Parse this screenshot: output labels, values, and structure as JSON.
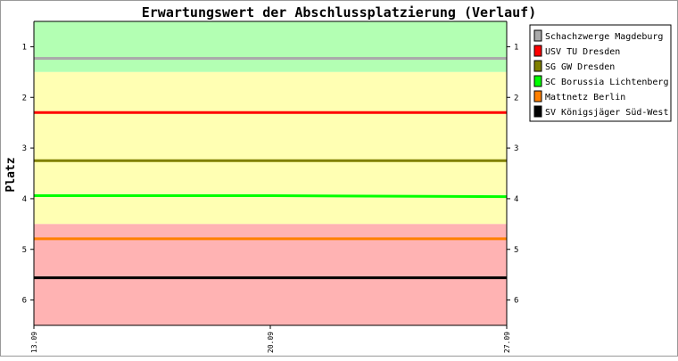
{
  "chart_data": {
    "type": "line",
    "title": "Erwartungswert der Abschlussplatzierung (Verlauf)",
    "xlabel": "",
    "ylabel": "Platz",
    "y_reversed": true,
    "ylim": [
      0.5,
      6.5
    ],
    "y_ticks": [
      "1",
      "2",
      "3",
      "4",
      "5",
      "6"
    ],
    "x": [
      "13.09",
      "20.09",
      "27.09"
    ],
    "bands": [
      {
        "from": 0.5,
        "to": 1.5,
        "color": "#b3ffb3"
      },
      {
        "from": 1.5,
        "to": 4.5,
        "color": "#ffffb3"
      },
      {
        "from": 4.5,
        "to": 6.5,
        "color": "#ffb3b3"
      }
    ],
    "series": [
      {
        "name": "Schachzwerge Magdeburg",
        "color": "#aaaaaa",
        "values": [
          1.23,
          1.23,
          1.23
        ]
      },
      {
        "name": "USV TU Dresden",
        "color": "#ff0000",
        "values": [
          2.3,
          2.3,
          2.3
        ]
      },
      {
        "name": "SG GW Dresden",
        "color": "#808000",
        "values": [
          3.25,
          3.25,
          3.25
        ]
      },
      {
        "name": "SC Borussia Lichtenberg",
        "color": "#00ff00",
        "values": [
          3.94,
          3.94,
          3.96
        ]
      },
      {
        "name": "Mattnetz Berlin",
        "color": "#ff8000",
        "values": [
          4.79,
          4.79,
          4.79
        ]
      },
      {
        "name": "SV Königsjäger Süd-West",
        "color": "#000000",
        "values": [
          5.56,
          5.56,
          5.56
        ]
      }
    ],
    "legend_position": "top-right",
    "grid": false
  }
}
